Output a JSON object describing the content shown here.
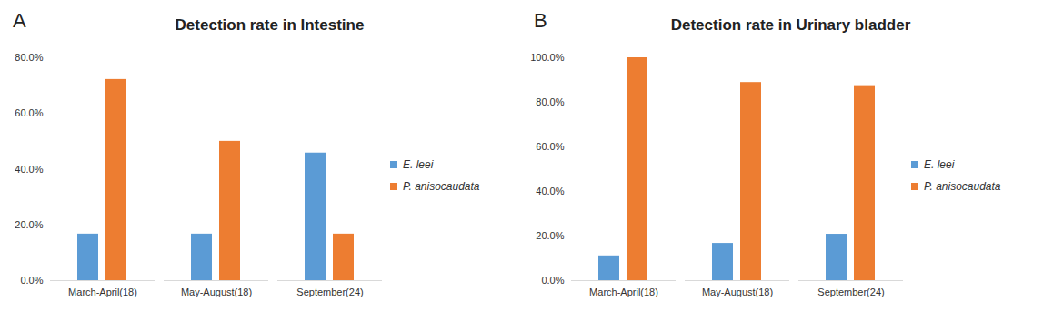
{
  "chart_data": [
    {
      "type": "bar",
      "annotations": [
        "A"
      ],
      "title": "Detection rate  in Intestine",
      "categories": [
        "March-April(18)",
        "May-August(18)",
        "September(24)"
      ],
      "series": [
        {
          "name": "E. leei",
          "color": "#5b9bd5",
          "values": [
            16.7,
            16.7,
            45.8
          ]
        },
        {
          "name": "P. anisocaudata",
          "color": "#ed7d31",
          "values": [
            72.2,
            50.0,
            16.7
          ]
        }
      ],
      "ylim": [
        0,
        80
      ],
      "yticks": [
        {
          "value": 0,
          "label": "0.0%"
        },
        {
          "value": 20,
          "label": "20.0%"
        },
        {
          "value": 40,
          "label": "40.0%"
        },
        {
          "value": 60,
          "label": "60.0%"
        },
        {
          "value": 80,
          "label": "80.0%"
        }
      ],
      "grid": false,
      "legend": "right"
    },
    {
      "type": "bar",
      "annotations": [
        "B"
      ],
      "title": "Detection rate  in Urinary bladder",
      "categories": [
        "March-April(18)",
        "May-August(18)",
        "September(24)"
      ],
      "series": [
        {
          "name": "E. leei",
          "color": "#5b9bd5",
          "values": [
            11.1,
            16.7,
            20.8
          ]
        },
        {
          "name": "P. anisocaudata",
          "color": "#ed7d31",
          "values": [
            100.0,
            88.9,
            87.5
          ]
        }
      ],
      "ylim": [
        0,
        100
      ],
      "yticks": [
        {
          "value": 0,
          "label": "0.0%"
        },
        {
          "value": 20,
          "label": "20.0%"
        },
        {
          "value": 40,
          "label": "40.0%"
        },
        {
          "value": 60,
          "label": "60.0%"
        },
        {
          "value": 80,
          "label": "80.0%"
        },
        {
          "value": 100,
          "label": "100.0%"
        }
      ],
      "grid": false,
      "legend": "right"
    }
  ]
}
